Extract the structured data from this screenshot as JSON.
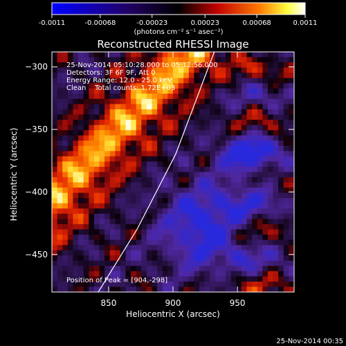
{
  "colorbar": {
    "tick_labels": [
      "-0.0011",
      "-0.00068",
      "-0.00023",
      "0.00023",
      "0.00068",
      "0.0011"
    ],
    "tick_values": [
      -0.0011,
      -0.00068,
      -0.00023,
      0.00023,
      0.00068,
      0.0011
    ],
    "range": [
      -0.0011,
      0.0011
    ],
    "unit_label": "(photons cm⁻² s⁻¹ asec⁻²)",
    "colors": [
      "#0000ff",
      "#ff0000",
      "#ffff00",
      "#ffffff"
    ]
  },
  "chart_data": {
    "type": "heatmap",
    "title": "Reconstructed RHESSI Image",
    "xlabel": "Heliocentric X (arcsec)",
    "ylabel": "Heliocentric Y (arcsec)",
    "xlim": [
      806,
      994
    ],
    "ylim": [
      -480,
      -288
    ],
    "x_ticks": [
      850,
      900,
      950
    ],
    "y_ticks": [
      -450,
      -400,
      -350,
      -300
    ],
    "x_tick_labels": [
      "850",
      "900",
      "950"
    ],
    "y_tick_labels": [
      "−450",
      "−400",
      "−350",
      "−300"
    ],
    "limb_line": [
      {
        "x": 842,
        "y": -480
      },
      {
        "x": 872,
        "y": -430
      },
      {
        "x": 902,
        "y": -370
      },
      {
        "x": 932,
        "y": -288
      }
    ],
    "peak": {
      "x": 904,
      "y": -298
    },
    "grid": false
  },
  "annotations": {
    "time_range": "25-Nov-2014 05:10:28.000 to 05:12:56.000",
    "detectors": "Detectors: 3F 6F 9F, Att 0",
    "energy_range": "Energy Range: 12.0 - 25.0 keV",
    "clean": "Clean    Total counts: 1.72E+03",
    "peak_text": "Position of Peak = [904,-298]"
  },
  "footer_timestamp": "25-Nov-2014 00:35"
}
